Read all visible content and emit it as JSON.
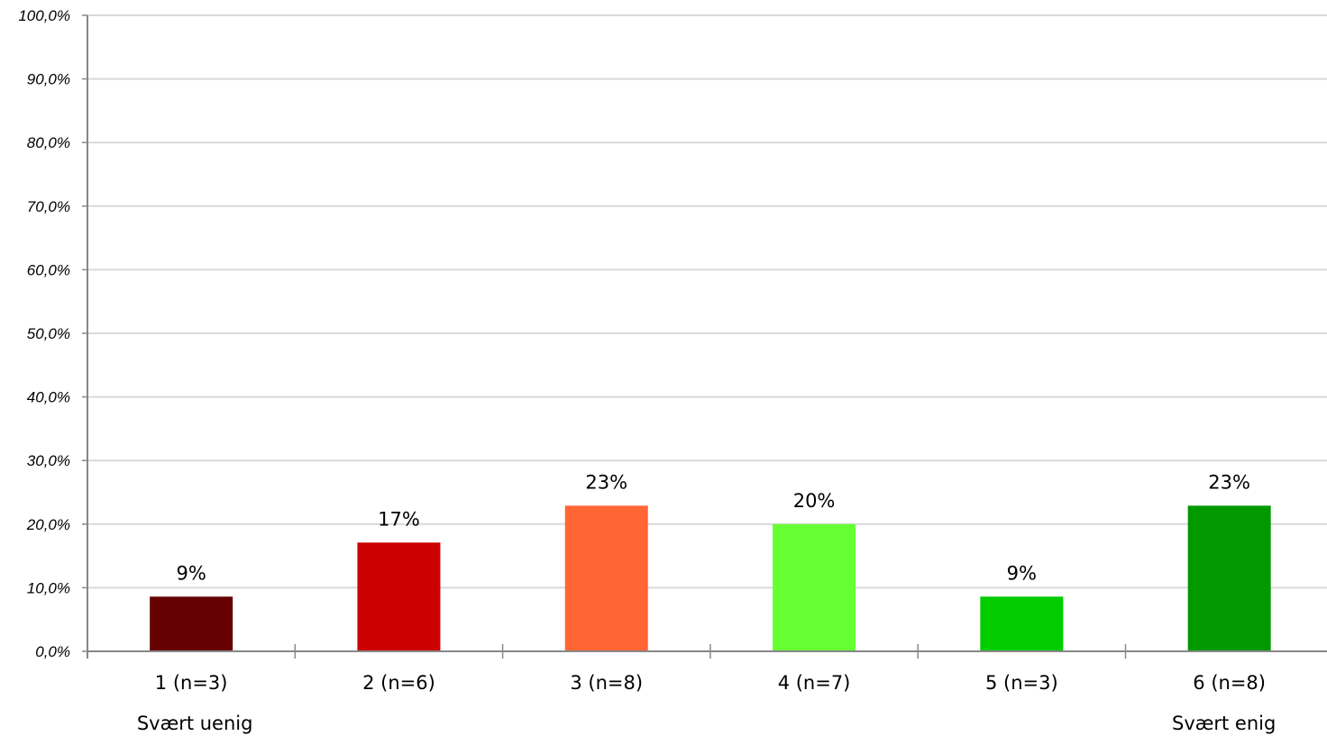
{
  "chart_data": {
    "type": "bar",
    "categories": [
      "1 (n=3)",
      "2 (n=6)",
      "3 (n=8)",
      "4 (n=7)",
      "5 (n=3)",
      "6 (n=8)"
    ],
    "values": [
      8.6,
      17.1,
      22.9,
      20.0,
      8.6,
      22.9
    ],
    "data_labels": [
      "9%",
      "17%",
      "23%",
      "20%",
      "9%",
      "23%"
    ],
    "colors": [
      "#660000",
      "#cc0000",
      "#ff6633",
      "#66ff33",
      "#00cc00",
      "#009900"
    ],
    "yticks": [
      "0,0%",
      "10,0%",
      "20,0%",
      "30,0%",
      "40,0%",
      "50,0%",
      "60,0%",
      "70,0%",
      "80,0%",
      "90,0%",
      "100,0%"
    ],
    "ylim": [
      0,
      100
    ],
    "grid": true,
    "scale_anchors": {
      "left": "Svært uenig",
      "right": "Svært enig"
    }
  }
}
